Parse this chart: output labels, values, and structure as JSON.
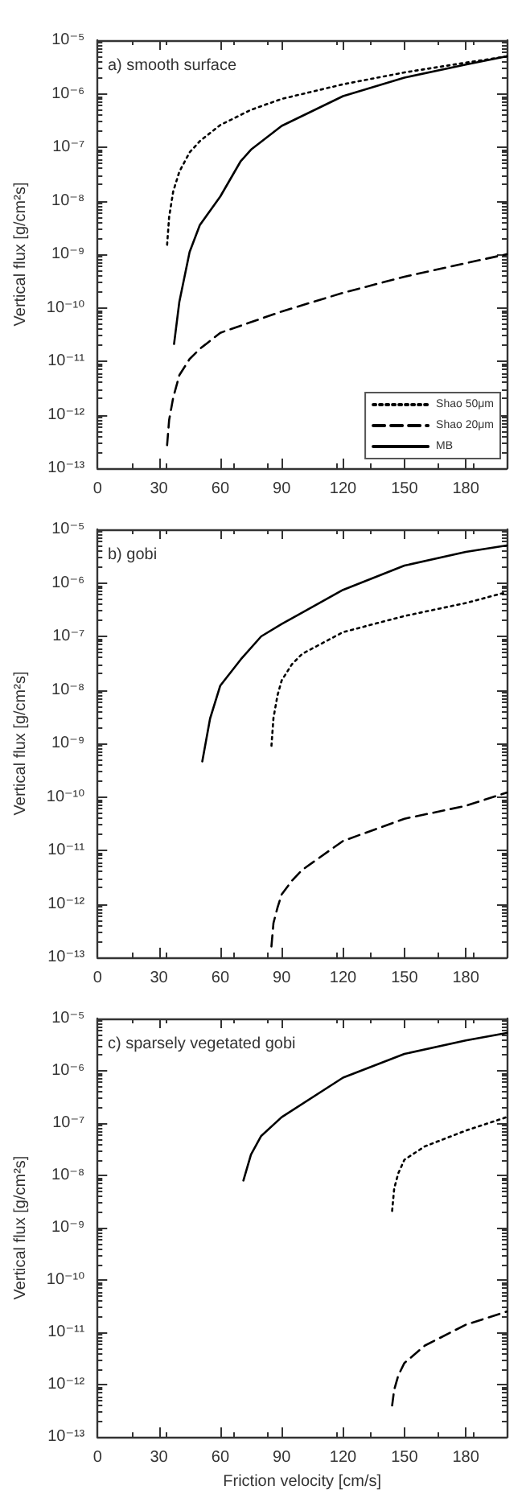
{
  "chart_data": [
    {
      "type": "line",
      "title": "a) smooth surface",
      "ylabel": "Vertical flux [g/cm²s]",
      "xlim": [
        0,
        200
      ],
      "xticks": [
        0,
        30,
        60,
        90,
        120,
        150,
        180
      ],
      "ylim": [
        1e-13,
        1e-05
      ],
      "yticks": [
        {
          "value": 1e-13,
          "label": "10⁻¹³"
        },
        {
          "value": 1e-12,
          "label": "10⁻¹²"
        },
        {
          "value": 1e-11,
          "label": "10⁻¹¹"
        },
        {
          "value": 1e-10,
          "label": "10⁻¹⁰"
        },
        {
          "value": 1e-09,
          "label": "10⁻⁹"
        },
        {
          "value": 1e-08,
          "label": "10⁻⁸"
        },
        {
          "value": 1e-07,
          "label": "10⁻⁷"
        },
        {
          "value": 1e-06,
          "label": "10⁻⁶"
        },
        {
          "value": 1e-05,
          "label": "10⁻⁵"
        }
      ],
      "log": "y",
      "grid": false,
      "legend": "bottom right",
      "marker": "none",
      "series": [
        {
          "name": "Shao 50μm",
          "color": "#000000",
          "line_style": "dotted",
          "x": [
            34,
            35,
            37,
            40,
            45,
            50,
            60,
            75,
            90,
            120,
            150,
            180,
            200
          ],
          "values": [
            1.5e-09,
            5e-09,
            1.5e-08,
            3.5e-08,
            8e-08,
            1.3e-07,
            2.6e-07,
            5e-07,
            8e-07,
            1.5e-06,
            2.5e-06,
            3.8e-06,
            5e-06
          ]
        },
        {
          "name": "Shao 20μm",
          "color": "#000000",
          "line_style": "dashed",
          "x": [
            34,
            35,
            37,
            40,
            45,
            50,
            60,
            90,
            120,
            150,
            180,
            200
          ],
          "values": [
            2.7e-13,
            8e-13,
            2.1e-12,
            5.5e-12,
            1.1e-11,
            1.7e-11,
            3.4e-11,
            8.5e-11,
            1.9e-10,
            3.8e-10,
            6.8e-10,
            1e-09
          ]
        },
        {
          "name": "MB",
          "color": "#000000",
          "line_style": "solid",
          "x": [
            37.4,
            40,
            45,
            50,
            60,
            70,
            75,
            90,
            120,
            150,
            180,
            200
          ],
          "values": [
            2.1e-11,
            1.3e-10,
            1.1e-09,
            3.5e-09,
            1.2e-08,
            5.5e-08,
            9e-08,
            2.5e-07,
            9e-07,
            2e-06,
            3.5e-06,
            5e-06
          ]
        }
      ]
    },
    {
      "type": "line",
      "title": "b) gobi",
      "ylabel": "Vertical flux [g/cm²s]",
      "xlim": [
        0,
        200
      ],
      "xticks": [
        0,
        30,
        60,
        90,
        120,
        150,
        180
      ],
      "ylim": [
        1e-13,
        1e-05
      ],
      "yticks": [
        {
          "value": 1e-13,
          "label": "10⁻¹³"
        },
        {
          "value": 1e-12,
          "label": "10⁻¹²"
        },
        {
          "value": 1e-11,
          "label": "10⁻¹¹"
        },
        {
          "value": 1e-10,
          "label": "10⁻¹⁰"
        },
        {
          "value": 1e-09,
          "label": "10⁻⁹"
        },
        {
          "value": 1e-08,
          "label": "10⁻⁸"
        },
        {
          "value": 1e-07,
          "label": "10⁻⁷"
        },
        {
          "value": 1e-06,
          "label": "10⁻⁶"
        },
        {
          "value": 1e-05,
          "label": "10⁻⁵"
        }
      ],
      "log": "y",
      "grid": false,
      "marker": "none",
      "series": [
        {
          "color": "#000000",
          "line_style": "dotted",
          "x": [
            85,
            86,
            88,
            90,
            95,
            100,
            120,
            150,
            180,
            200
          ],
          "values": [
            9e-10,
            3e-09,
            8e-09,
            1.5e-08,
            3e-08,
            4.7e-08,
            1.2e-07,
            2.4e-07,
            4.2e-07,
            6.7e-07
          ]
        },
        {
          "color": "#000000",
          "line_style": "dashed",
          "x": [
            85,
            86,
            88,
            90,
            95,
            100,
            120,
            150,
            180,
            200
          ],
          "values": [
            1.6e-13,
            4.4e-13,
            8.6e-13,
            1.5e-12,
            2.7e-12,
            4.3e-12,
            1.5e-11,
            3.9e-11,
            6.8e-11,
            1.2e-10
          ]
        },
        {
          "color": "#000000",
          "line_style": "solid",
          "x": [
            51.2,
            55,
            60,
            70,
            80,
            90,
            120,
            150,
            180,
            200
          ],
          "values": [
            4.6e-10,
            2.9e-09,
            1.2e-08,
            3.7e-08,
            1e-07,
            1.7e-07,
            7.4e-07,
            2.1e-06,
            3.8e-06,
            5e-06
          ]
        }
      ]
    },
    {
      "type": "line",
      "title": "c) sparsely vegetated gobi",
      "xlabel": "Friction velocity [cm/s]",
      "ylabel": "Vertical flux [g/cm²s]",
      "xlim": [
        0,
        200
      ],
      "xticks": [
        0,
        30,
        60,
        90,
        120,
        150,
        180
      ],
      "ylim": [
        1e-13,
        1e-05
      ],
      "yticks": [
        {
          "value": 1e-13,
          "label": "10⁻¹³"
        },
        {
          "value": 1e-12,
          "label": "10⁻¹²"
        },
        {
          "value": 1e-11,
          "label": "10⁻¹¹"
        },
        {
          "value": 1e-10,
          "label": "10⁻¹⁰"
        },
        {
          "value": 1e-09,
          "label": "10⁻⁹"
        },
        {
          "value": 1e-08,
          "label": "10⁻⁸"
        },
        {
          "value": 1e-07,
          "label": "10⁻⁷"
        },
        {
          "value": 1e-06,
          "label": "10⁻⁶"
        },
        {
          "value": 1e-05,
          "label": "10⁻⁵"
        }
      ],
      "log": "y",
      "grid": false,
      "marker": "none",
      "series": [
        {
          "color": "#000000",
          "line_style": "dotted",
          "x": [
            144,
            145,
            147,
            150,
            160,
            180,
            200
          ],
          "values": [
            2.1e-09,
            5.6e-09,
            1.1e-08,
            2e-08,
            3.6e-08,
            7.2e-08,
            1.3e-07
          ]
        },
        {
          "color": "#000000",
          "line_style": "dashed",
          "x": [
            144,
            145,
            147,
            150,
            160,
            180,
            200
          ],
          "values": [
            4e-13,
            8e-13,
            1.5e-12,
            2.6e-12,
            5.6e-12,
            1.4e-11,
            2.5e-11
          ]
        },
        {
          "color": "#000000",
          "line_style": "solid",
          "x": [
            71.3,
            75,
            80,
            90,
            120,
            150,
            180,
            200
          ],
          "values": [
            8e-09,
            2.5e-08,
            5.7e-08,
            1.3e-07,
            7.4e-07,
            2.1e-06,
            3.8e-06,
            5.3e-06
          ]
        }
      ]
    }
  ]
}
